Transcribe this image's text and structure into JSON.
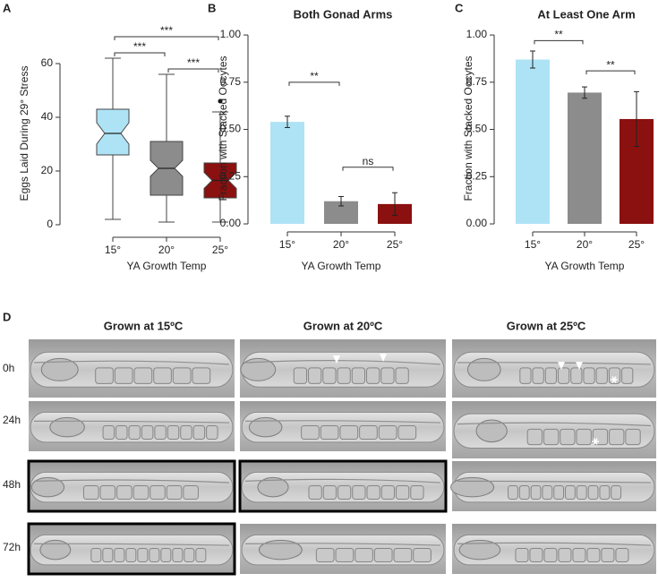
{
  "chart_data": [
    {
      "type": "box",
      "panel": "A",
      "ylabel": "Eggs Laid During 29° Stress",
      "xlabel": "YA Growth Temp",
      "categories": [
        "15°",
        "20°",
        "25°"
      ],
      "colors": [
        "#aee3f5",
        "#8c8c8c",
        "#8b1010"
      ],
      "whisker_low": [
        2,
        1,
        1
      ],
      "q1": [
        26,
        11,
        10
      ],
      "median": [
        34,
        21,
        16.5
      ],
      "q3": [
        43,
        31,
        23
      ],
      "whisker_high": [
        62,
        56,
        42
      ],
      "notch_low": [
        30,
        18,
        13.5
      ],
      "notch_high": [
        38,
        24,
        19.5
      ],
      "outliers": [
        [],
        [],
        [
          46
        ]
      ],
      "ylim": [
        -4,
        72
      ],
      "yticks": [
        0,
        20,
        40,
        60
      ],
      "brackets": [
        {
          "from": 0,
          "to": 2,
          "y": 70,
          "label": "***"
        },
        {
          "from": 0,
          "to": 1,
          "y": 64,
          "label": "***"
        },
        {
          "from": 1,
          "to": 2,
          "y": 58,
          "label": "***"
        }
      ]
    },
    {
      "type": "bar",
      "panel": "B",
      "title": "Both Gonad Arms",
      "ylabel": "Fraction with Stacked Oocytes",
      "xlabel": "YA Growth Temp",
      "categories": [
        "15°",
        "20°",
        "25°"
      ],
      "colors": [
        "#aee3f5",
        "#8c8c8c",
        "#8b1010"
      ],
      "values": [
        0.54,
        0.12,
        0.105
      ],
      "errors": [
        0.03,
        0.025,
        0.06
      ],
      "ylim": [
        -0.033,
        1.043
      ],
      "yticks": [
        {
          "value": 0,
          "label": "0.00"
        },
        {
          "value": 0.25,
          "label": "0.25"
        },
        {
          "value": 0.5,
          "label": "0.50"
        },
        {
          "value": 0.75,
          "label": "0.75"
        },
        {
          "value": 1,
          "label": "1.00"
        }
      ],
      "brackets": [
        {
          "from": 0,
          "to": 1,
          "y": 0.75,
          "label": "**"
        },
        {
          "from": 1,
          "to": 2,
          "y": 0.3,
          "label": "ns"
        }
      ]
    },
    {
      "type": "bar",
      "panel": "C",
      "title": "At Least One Arm",
      "ylabel": "Fraction with Stacked Oocytes",
      "xlabel": "YA Growth Temp",
      "categories": [
        "15°",
        "20°",
        "25°"
      ],
      "colors": [
        "#aee3f5",
        "#8c8c8c",
        "#8b1010"
      ],
      "values": [
        0.87,
        0.695,
        0.555
      ],
      "errors": [
        0.045,
        0.03,
        0.145
      ],
      "ylim": [
        -0.033,
        1.043
      ],
      "yticks": [
        {
          "value": 0,
          "label": "0.00"
        },
        {
          "value": 0.25,
          "label": "0.25"
        },
        {
          "value": 0.5,
          "label": "0.50"
        },
        {
          "value": 0.75,
          "label": "0.75"
        },
        {
          "value": 1,
          "label": "1.00"
        }
      ],
      "brackets": [
        {
          "from": 0,
          "to": 1,
          "y": 0.97,
          "label": "**"
        },
        {
          "from": 1,
          "to": 2,
          "y": 0.81,
          "label": "**"
        }
      ]
    }
  ],
  "panel_d": {
    "label": "D",
    "columns": [
      "Grown at 15ºC",
      "Grown at 20ºC",
      "Grown at 25ºC"
    ],
    "rows": [
      "0h",
      "24h",
      "48h",
      "72h"
    ]
  }
}
